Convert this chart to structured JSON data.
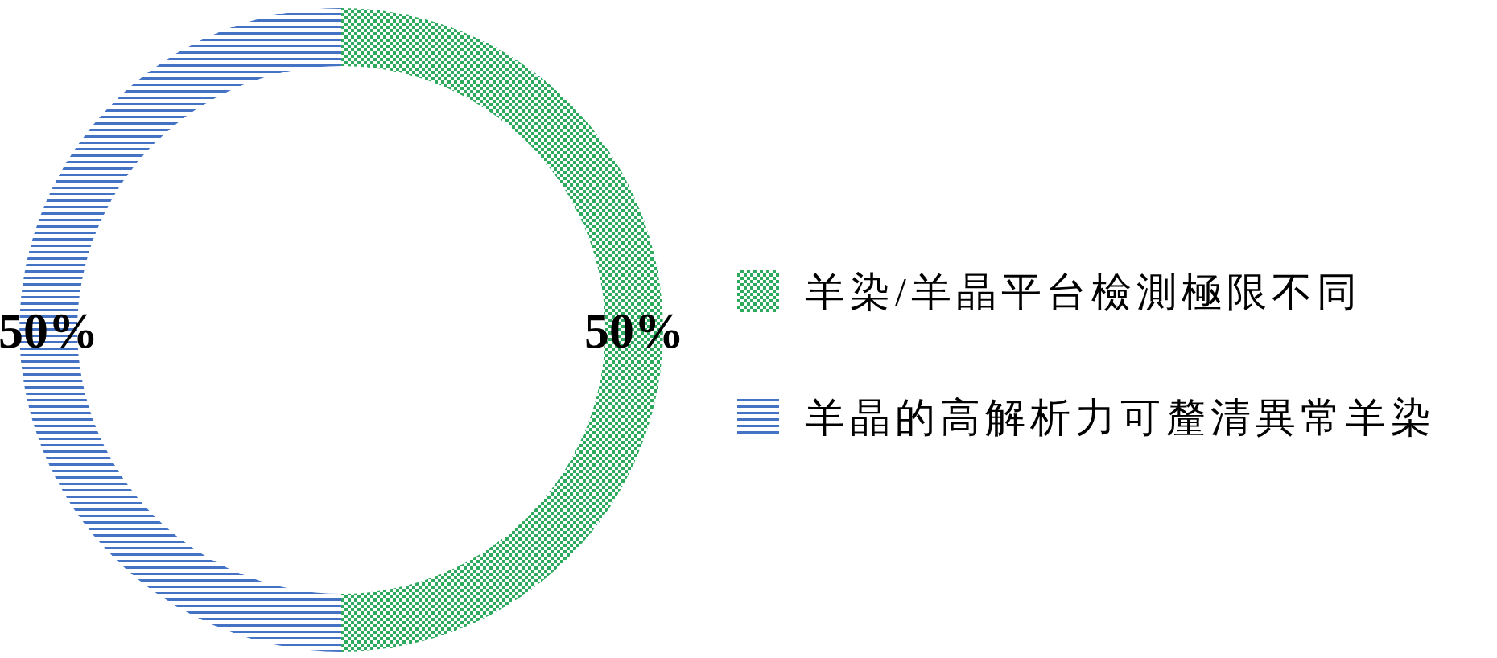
{
  "chart_data": {
    "type": "donut",
    "categories": [
      "羊染/羊晶平台檢測極限不同",
      "羊晶的高解析力可釐清異常羊染"
    ],
    "values": [
      50,
      50
    ],
    "colors": [
      "#2eaa5e",
      "#4472c4"
    ],
    "value_labels": [
      "50%",
      "50%"
    ],
    "legend": "right"
  }
}
